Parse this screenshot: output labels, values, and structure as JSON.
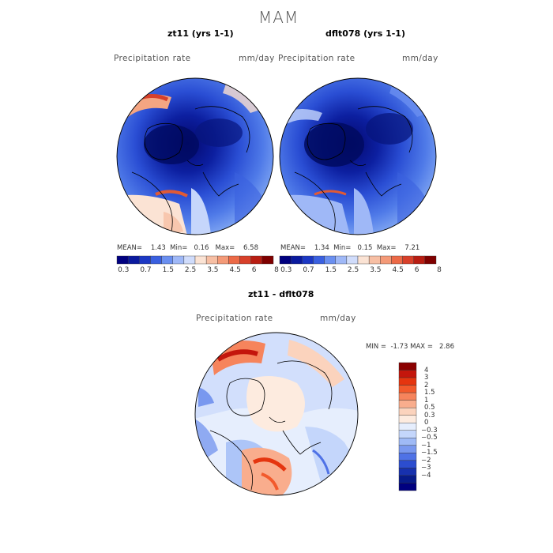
{
  "figure": {
    "season": "MAM"
  },
  "panels": [
    {
      "title": "zt11 (yrs 1-1)",
      "variable": "Precipitation rate",
      "units": "mm/day",
      "stats": {
        "mean_label": "MEAN=",
        "mean": "1.43",
        "min_label": "Min=",
        "min": "0.16",
        "max_label": "Max=",
        "max": "6.58"
      }
    },
    {
      "title": "dflt078 (yrs 1-1)",
      "variable": "Precipitation rate",
      "units": "mm/day",
      "stats": {
        "mean_label": "MEAN=",
        "mean": "1.34",
        "min_label": "Min=",
        "min": "0.15",
        "max_label": "Max=",
        "max": "7.21"
      }
    }
  ],
  "abs_colorbar": {
    "colors": [
      "#00007f",
      "#0a1a9e",
      "#1c38c4",
      "#3a60e0",
      "#6a8ff0",
      "#9fb8f7",
      "#d0dcfb",
      "#fbe3d4",
      "#f7bfa4",
      "#f49a78",
      "#ec6a47",
      "#d8402a",
      "#b81d12",
      "#7f0000"
    ],
    "ticks": [
      "0.3",
      "0.7",
      "1.5",
      "2.5",
      "3.5",
      "4.5",
      "6",
      "8"
    ]
  },
  "diff_panel": {
    "title": "zt11 - dflt078",
    "variable": "Precipitation rate",
    "units": "mm/day",
    "stats": {
      "min_label": "MIN =",
      "min": "-1.73",
      "max_label": "MAX =",
      "max": "2.86"
    }
  },
  "diff_colorbar": {
    "colors": [
      "#8b0000",
      "#c4160c",
      "#e5350f",
      "#f25a2c",
      "#f6845c",
      "#f9ad8d",
      "#fbd3bd",
      "#fdebdf",
      "#e6eefd",
      "#c4d6fb",
      "#9fbaf6",
      "#7998ef",
      "#4f72e6",
      "#2c4dcf",
      "#1731ae",
      "#071b8a",
      "#00007f"
    ],
    "ticks": [
      "4",
      "3",
      "2",
      "1.5",
      "1",
      "0.5",
      "0.3",
      "0",
      "−0.3",
      "−0.5",
      "−1",
      "−1.5",
      "−2",
      "−3",
      "−4"
    ]
  }
}
